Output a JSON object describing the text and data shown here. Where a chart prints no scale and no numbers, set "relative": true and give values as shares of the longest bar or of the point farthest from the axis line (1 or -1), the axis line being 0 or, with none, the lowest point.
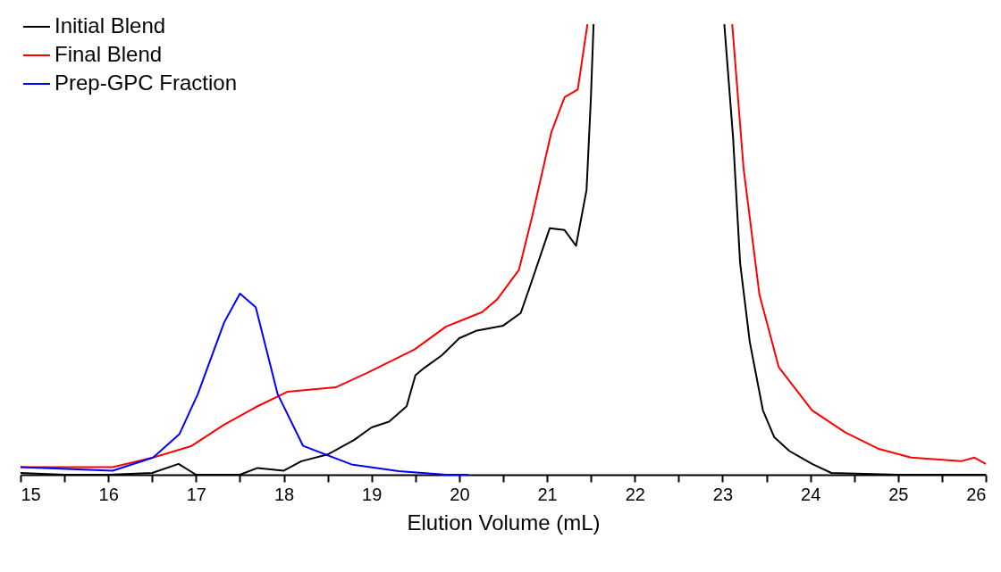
{
  "chart_data": {
    "type": "line",
    "relative": true,
    "xlabel": "Elution Volume (mL)",
    "legend": "top left",
    "grid": false,
    "marker": "none",
    "line_style": "solid",
    "xlim": [
      15,
      26
    ],
    "xticks": [
      15,
      {
        "value": 15.5,
        "label": null
      },
      16,
      {
        "value": 16.5,
        "label": null
      },
      17,
      {
        "value": 17.5,
        "label": null
      },
      18,
      {
        "value": 18.5,
        "label": null
      },
      19,
      {
        "value": 19.5,
        "label": null
      },
      20,
      {
        "value": 20.5,
        "label": null
      },
      21,
      {
        "value": 21.5,
        "label": null
      },
      22,
      {
        "value": 22.5,
        "label": null
      },
      23,
      {
        "value": 23.5,
        "label": null
      },
      24,
      {
        "value": 24.5,
        "label": null
      },
      25,
      {
        "value": 25.5,
        "label": null
      },
      26
    ],
    "series": [
      {
        "name": "Initial Blend",
        "color": "#000000",
        "x": [
          15,
          15.5,
          16,
          16.5,
          16.8,
          17,
          17.5,
          17.7,
          18,
          18.2,
          18.5,
          18.8,
          19,
          19.2,
          19.4,
          19.5,
          19.6,
          19.8,
          20,
          20.2,
          20.5,
          20.7,
          20.8,
          21.03,
          21.2,
          21.33,
          21.45,
          21.5,
          21.53,
          22.3,
          23.02,
          23.12,
          23.2,
          23.31,
          23.46,
          23.59,
          23.76,
          24.02,
          24.24,
          25,
          26
        ],
        "values": [
          0.004,
          0,
          0,
          0.004,
          0.024,
          0,
          0,
          0.015,
          0.009,
          0.03,
          0.045,
          0.077,
          0.105,
          0.118,
          0.152,
          0.221,
          0.237,
          0.265,
          0.303,
          0.32,
          0.331,
          0.359,
          0.415,
          0.547,
          0.543,
          0.508,
          0.632,
          0.838,
          1.0,
          null,
          1.0,
          0.748,
          0.47,
          0.295,
          0.143,
          0.083,
          0.053,
          0.024,
          0.004,
          0,
          0
        ]
      },
      {
        "name": "Final Blend",
        "color": "#ff0000",
        "x": [
          15,
          16.05,
          16.51,
          16.95,
          17.32,
          17.68,
          18.04,
          18.59,
          18.95,
          19.49,
          19.85,
          20.26,
          20.43,
          20.68,
          20.83,
          21.05,
          21.2,
          21.35,
          21.46,
          22.3,
          23.11,
          23.24,
          23.42,
          23.64,
          24.02,
          24.4,
          24.77,
          25.15,
          25.72,
          25.87,
          26
        ],
        "values": [
          0.017,
          0.017,
          0.038,
          0.064,
          0.111,
          0.15,
          0.184,
          0.194,
          0.226,
          0.278,
          0.329,
          0.361,
          0.389,
          0.455,
          0.573,
          0.761,
          0.838,
          0.855,
          1.0,
          null,
          1.0,
          0.679,
          0.4,
          0.239,
          0.143,
          0.094,
          0.058,
          0.038,
          0.03,
          0.038,
          0.024
        ]
      },
      {
        "name": "Prep-GPC Fraction",
        "color": "#0000ff",
        "x": [
          15,
          16.05,
          16.51,
          16.81,
          17.02,
          17.32,
          17.5,
          17.68,
          17.93,
          18.22,
          18.77,
          19.31,
          19.85,
          20.1
        ],
        "values": [
          0.017,
          0.009,
          0.038,
          0.09,
          0.179,
          0.338,
          0.402,
          0.372,
          0.179,
          0.064,
          0.023,
          0.008,
          0,
          0
        ]
      }
    ]
  }
}
